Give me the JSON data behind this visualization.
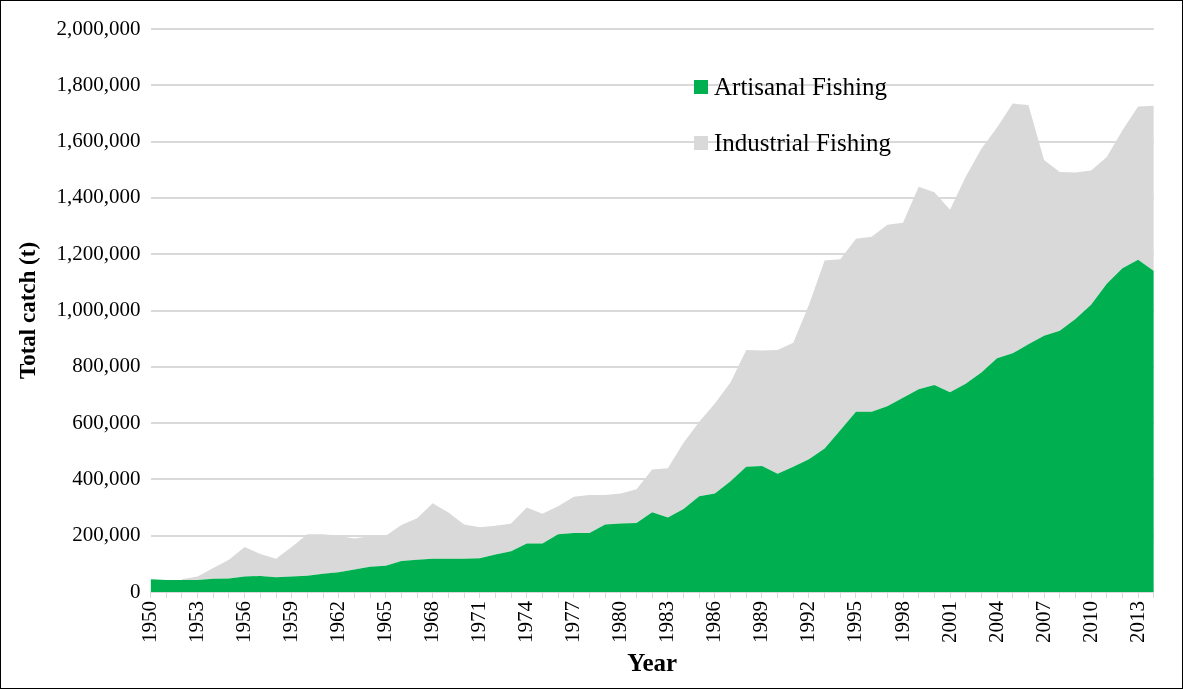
{
  "chart_data": {
    "type": "area",
    "stacked": true,
    "xlabel": "Year",
    "ylabel": "Total catch (t)",
    "categories": [
      "1950",
      null,
      null,
      "1953",
      null,
      null,
      "1956",
      null,
      null,
      "1959",
      null,
      null,
      "1962",
      null,
      null,
      "1965",
      null,
      null,
      "1968",
      null,
      null,
      "1971",
      null,
      null,
      "1974",
      null,
      null,
      "1977",
      null,
      null,
      "1980",
      null,
      null,
      "1983",
      null,
      null,
      "1986",
      null,
      null,
      "1989",
      null,
      null,
      "1992",
      null,
      null,
      "1995",
      null,
      null,
      "1998",
      null,
      null,
      "2001",
      null,
      null,
      "2004",
      null,
      null,
      "2007",
      null,
      null,
      "2010",
      null,
      null,
      "2013",
      null
    ],
    "series": [
      {
        "name": "Artisanal Fishing",
        "color": "#00b050",
        "values": [
          45000,
          43000,
          43000,
          43000,
          47000,
          48000,
          55000,
          57000,
          52000,
          55000,
          58000,
          65000,
          70000,
          80000,
          90000,
          93000,
          110000,
          115000,
          118000,
          118000,
          118000,
          120000,
          133000,
          145000,
          172000,
          172000,
          205000,
          210000,
          210000,
          240000,
          243000,
          245000,
          283000,
          265000,
          295000,
          340000,
          350000,
          393000,
          445000,
          448000,
          420000,
          445000,
          472000,
          510000,
          575000,
          640000,
          640000,
          660000,
          690000,
          720000,
          735000,
          710000,
          740000,
          780000,
          830000,
          848000,
          880000,
          910000,
          928000,
          970000,
          1020000,
          1095000,
          1150000,
          1180000,
          1140000
        ]
      },
      {
        "name": "Industrial Fishing",
        "color": "#d9d9d9",
        "values": [
          null,
          null,
          2000,
          12000,
          38000,
          67000,
          105000,
          78000,
          66000,
          105000,
          147000,
          140000,
          130000,
          110000,
          108000,
          107000,
          128000,
          147000,
          197000,
          164000,
          122000,
          110000,
          102000,
          98000,
          128000,
          106000,
          100000,
          128000,
          135000,
          105000,
          107000,
          120000,
          152000,
          175000,
          235000,
          265000,
          320000,
          352000,
          415000,
          410000,
          440000,
          440000,
          548000,
          668000,
          607000,
          615000,
          622000,
          645000,
          622000,
          720000,
          685000,
          648000,
          735000,
          795000,
          820000,
          887000,
          850000,
          625000,
          564000,
          520000,
          477000,
          450000,
          490000,
          545000,
          587000
        ]
      }
    ],
    "ylim": [
      0,
      2000000
    ],
    "yticks": [
      0,
      {
        "value": 200000,
        "label": "200,000"
      },
      {
        "value": 400000,
        "label": "400,000"
      },
      {
        "value": 600000,
        "label": "600,000"
      },
      {
        "value": 800000,
        "label": "800,000"
      },
      {
        "value": 1000000,
        "label": "1,000,000"
      },
      {
        "value": 1200000,
        "label": "1,200,000"
      },
      {
        "value": 1400000,
        "label": "1,400,000"
      },
      {
        "value": 1600000,
        "label": "1,600,000"
      },
      {
        "value": 1800000,
        "label": "1,800,000"
      },
      {
        "value": 2000000,
        "label": "2,000,000"
      }
    ],
    "grid": "y",
    "legend": "top right"
  }
}
